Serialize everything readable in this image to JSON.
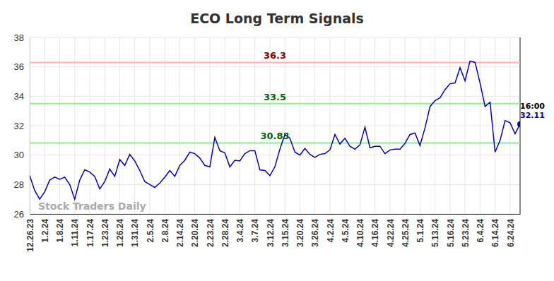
{
  "chart_data": {
    "type": "line",
    "title": "ECO Long Term Signals",
    "categories": [
      "12.26.23",
      null,
      null,
      "1.2.24",
      null,
      null,
      "1.8.24",
      null,
      null,
      "1.11.24",
      null,
      null,
      "1.17.24",
      null,
      null,
      "1.23.24",
      null,
      null,
      "1.26.24",
      null,
      null,
      "1.31.24",
      null,
      null,
      "2.5.24",
      null,
      null,
      "2.8.24",
      null,
      null,
      "2.14.24",
      null,
      null,
      "2.20.24",
      null,
      null,
      "2.23.24",
      null,
      null,
      "2.28.24",
      null,
      null,
      "3.4.24",
      null,
      null,
      "3.7.24",
      null,
      null,
      "3.12.24",
      null,
      null,
      "3.15.24",
      null,
      null,
      "3.20.24",
      null,
      null,
      "3.26.24",
      null,
      null,
      "4.2.24",
      null,
      null,
      "4.5.24",
      null,
      null,
      "4.10.24",
      null,
      null,
      "4.16.24",
      null,
      null,
      "4.22.24",
      null,
      null,
      "4.25.24",
      null,
      null,
      "5.1.24",
      null,
      null,
      "5.13.24",
      null,
      null,
      "5.16.24",
      null,
      null,
      "5.23.24",
      null,
      null,
      "6.4.24",
      null,
      null,
      "6.14.24",
      null,
      null,
      "6.24.24",
      null,
      null
    ],
    "values": [
      28.6,
      27.6,
      27.0,
      27.5,
      28.3,
      28.5,
      28.35,
      28.5,
      28.0,
      27.0,
      28.3,
      29.0,
      28.85,
      28.55,
      27.7,
      28.2,
      29.05,
      28.55,
      29.7,
      29.3,
      30.05,
      29.6,
      28.95,
      28.2,
      28.0,
      27.8,
      28.1,
      28.5,
      28.95,
      28.55,
      29.3,
      29.65,
      30.2,
      30.1,
      29.8,
      29.3,
      29.2,
      31.2,
      30.3,
      30.15,
      29.2,
      29.65,
      29.6,
      30.1,
      30.3,
      30.3,
      29.0,
      28.95,
      28.6,
      29.2,
      30.4,
      31.4,
      31.15,
      30.2,
      30.0,
      30.45,
      30.05,
      29.85,
      30.05,
      30.1,
      30.35,
      31.4,
      30.75,
      31.15,
      30.6,
      30.4,
      30.7,
      31.9,
      30.5,
      30.6,
      30.6,
      30.1,
      30.35,
      30.4,
      30.4,
      30.8,
      31.4,
      31.5,
      30.65,
      31.85,
      33.3,
      33.7,
      33.9,
      34.45,
      34.85,
      34.9,
      35.95,
      35.05,
      36.4,
      36.3,
      34.9,
      33.3,
      33.6,
      30.2,
      31.0,
      32.35,
      32.2,
      31.45,
      32.11
    ],
    "color": "#0000cc",
    "ylim": [
      26,
      38
    ],
    "yticks": [
      26,
      28,
      30,
      32,
      34,
      36,
      38
    ],
    "grid": true,
    "annotations": [
      {
        "value": 36.3,
        "color": "#8b0000"
      },
      {
        "value": 33.5,
        "color": "#006400"
      },
      {
        "value": 30.83,
        "color": "#006400"
      }
    ],
    "last_time": "16:00",
    "watermark": "Stock Traders Daily"
  }
}
